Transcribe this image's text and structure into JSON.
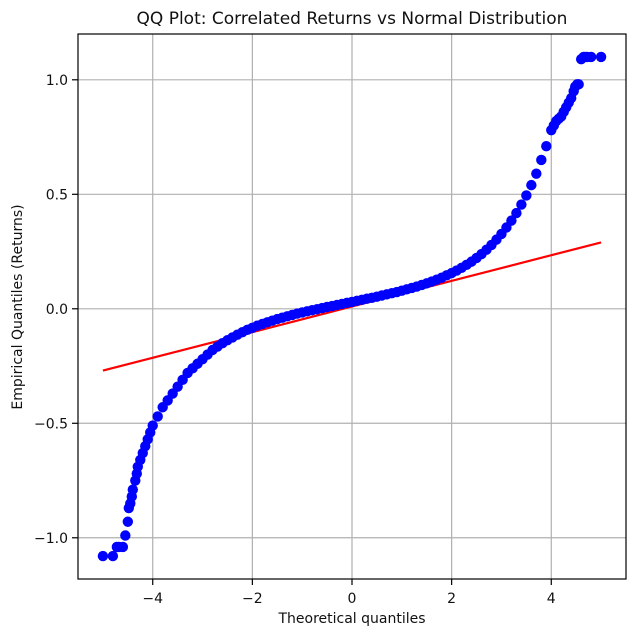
{
  "chart_data": {
    "type": "scatter",
    "title": "QQ Plot: Correlated Returns vs Normal Distribution",
    "xlabel": "Theoretical quantiles",
    "ylabel": "Empirical Quantiles (Returns)",
    "xlim": [
      -5.5,
      5.5
    ],
    "ylim": [
      -1.18,
      1.2
    ],
    "xticks": [
      -4,
      -2,
      0,
      2,
      4
    ],
    "xtick_labels": [
      "−4",
      "−2",
      "0",
      "2",
      "4"
    ],
    "yticks": [
      -1.0,
      -0.5,
      0.0,
      0.5,
      1.0
    ],
    "ytick_labels": [
      "−1.0",
      "−0.5",
      "0.0",
      "0.5",
      "1.0"
    ],
    "grid": true,
    "colors": {
      "points": "#0000ff",
      "reference_line": "#ff0000",
      "grid": "#b0b0b0",
      "axis": "#000000"
    },
    "series": [
      {
        "type": "scatter",
        "x": [
          -5.0,
          -4.8,
          -4.72,
          -4.68,
          -4.6,
          -4.55,
          -4.5,
          -4.48,
          -4.45,
          -4.42,
          -4.4,
          -4.35,
          -4.32,
          -4.3,
          -4.25,
          -4.2,
          -4.15,
          -4.1,
          -4.05,
          -4.0,
          -3.9,
          -3.8,
          -3.7,
          -3.6,
          -3.5,
          -3.4,
          -3.3,
          -3.2,
          -3.1,
          -3.0,
          -2.9,
          -2.8,
          -2.7,
          -2.6,
          -2.5,
          -2.4,
          -2.3,
          -2.2,
          -2.1,
          -2.0,
          -1.9,
          -1.8,
          -1.7,
          -1.6,
          -1.5,
          -1.4,
          -1.3,
          -1.2,
          -1.1,
          -1.0,
          -0.9,
          -0.8,
          -0.7,
          -0.6,
          -0.5,
          -0.4,
          -0.3,
          -0.2,
          -0.1,
          0.0,
          0.1,
          0.2,
          0.3,
          0.4,
          0.5,
          0.6,
          0.7,
          0.8,
          0.9,
          1.0,
          1.1,
          1.2,
          1.3,
          1.4,
          1.5,
          1.6,
          1.7,
          1.8,
          1.9,
          2.0,
          2.1,
          2.2,
          2.3,
          2.4,
          2.5,
          2.6,
          2.7,
          2.8,
          2.9,
          3.0,
          3.1,
          3.2,
          3.3,
          3.4,
          3.5,
          3.6,
          3.7,
          3.8,
          3.9,
          4.0,
          4.05,
          4.1,
          4.15,
          4.2,
          4.25,
          4.3,
          4.35,
          4.4,
          4.45,
          4.48,
          4.52,
          4.55,
          4.6,
          4.65,
          4.68,
          4.72,
          4.8,
          5.0
        ],
        "y": [
          -1.08,
          -1.08,
          -1.04,
          -1.04,
          -1.04,
          -0.99,
          -0.93,
          -0.87,
          -0.85,
          -0.82,
          -0.79,
          -0.75,
          -0.72,
          -0.69,
          -0.66,
          -0.63,
          -0.6,
          -0.57,
          -0.54,
          -0.51,
          -0.47,
          -0.43,
          -0.4,
          -0.37,
          -0.34,
          -0.31,
          -0.28,
          -0.26,
          -0.24,
          -0.22,
          -0.2,
          -0.18,
          -0.165,
          -0.15,
          -0.137,
          -0.125,
          -0.113,
          -0.102,
          -0.092,
          -0.083,
          -0.074,
          -0.066,
          -0.059,
          -0.052,
          -0.045,
          -0.039,
          -0.033,
          -0.027,
          -0.021,
          -0.016,
          -0.011,
          -0.006,
          -0.002,
          0.003,
          0.008,
          0.012,
          0.017,
          0.021,
          0.026,
          0.03,
          0.035,
          0.039,
          0.044,
          0.048,
          0.053,
          0.058,
          0.063,
          0.068,
          0.073,
          0.079,
          0.085,
          0.091,
          0.097,
          0.104,
          0.111,
          0.119,
          0.127,
          0.136,
          0.146,
          0.156,
          0.167,
          0.179,
          0.192,
          0.206,
          0.222,
          0.239,
          0.258,
          0.279,
          0.302,
          0.327,
          0.355,
          0.385,
          0.418,
          0.455,
          0.495,
          0.54,
          0.59,
          0.65,
          0.71,
          0.78,
          0.8,
          0.82,
          0.83,
          0.84,
          0.86,
          0.88,
          0.9,
          0.92,
          0.95,
          0.97,
          0.98,
          0.98,
          1.09,
          1.1,
          1.1,
          1.1,
          1.1,
          1.1
        ]
      },
      {
        "type": "line",
        "x": [
          -5.0,
          5.0
        ],
        "y": [
          -0.27,
          0.29
        ]
      }
    ]
  }
}
